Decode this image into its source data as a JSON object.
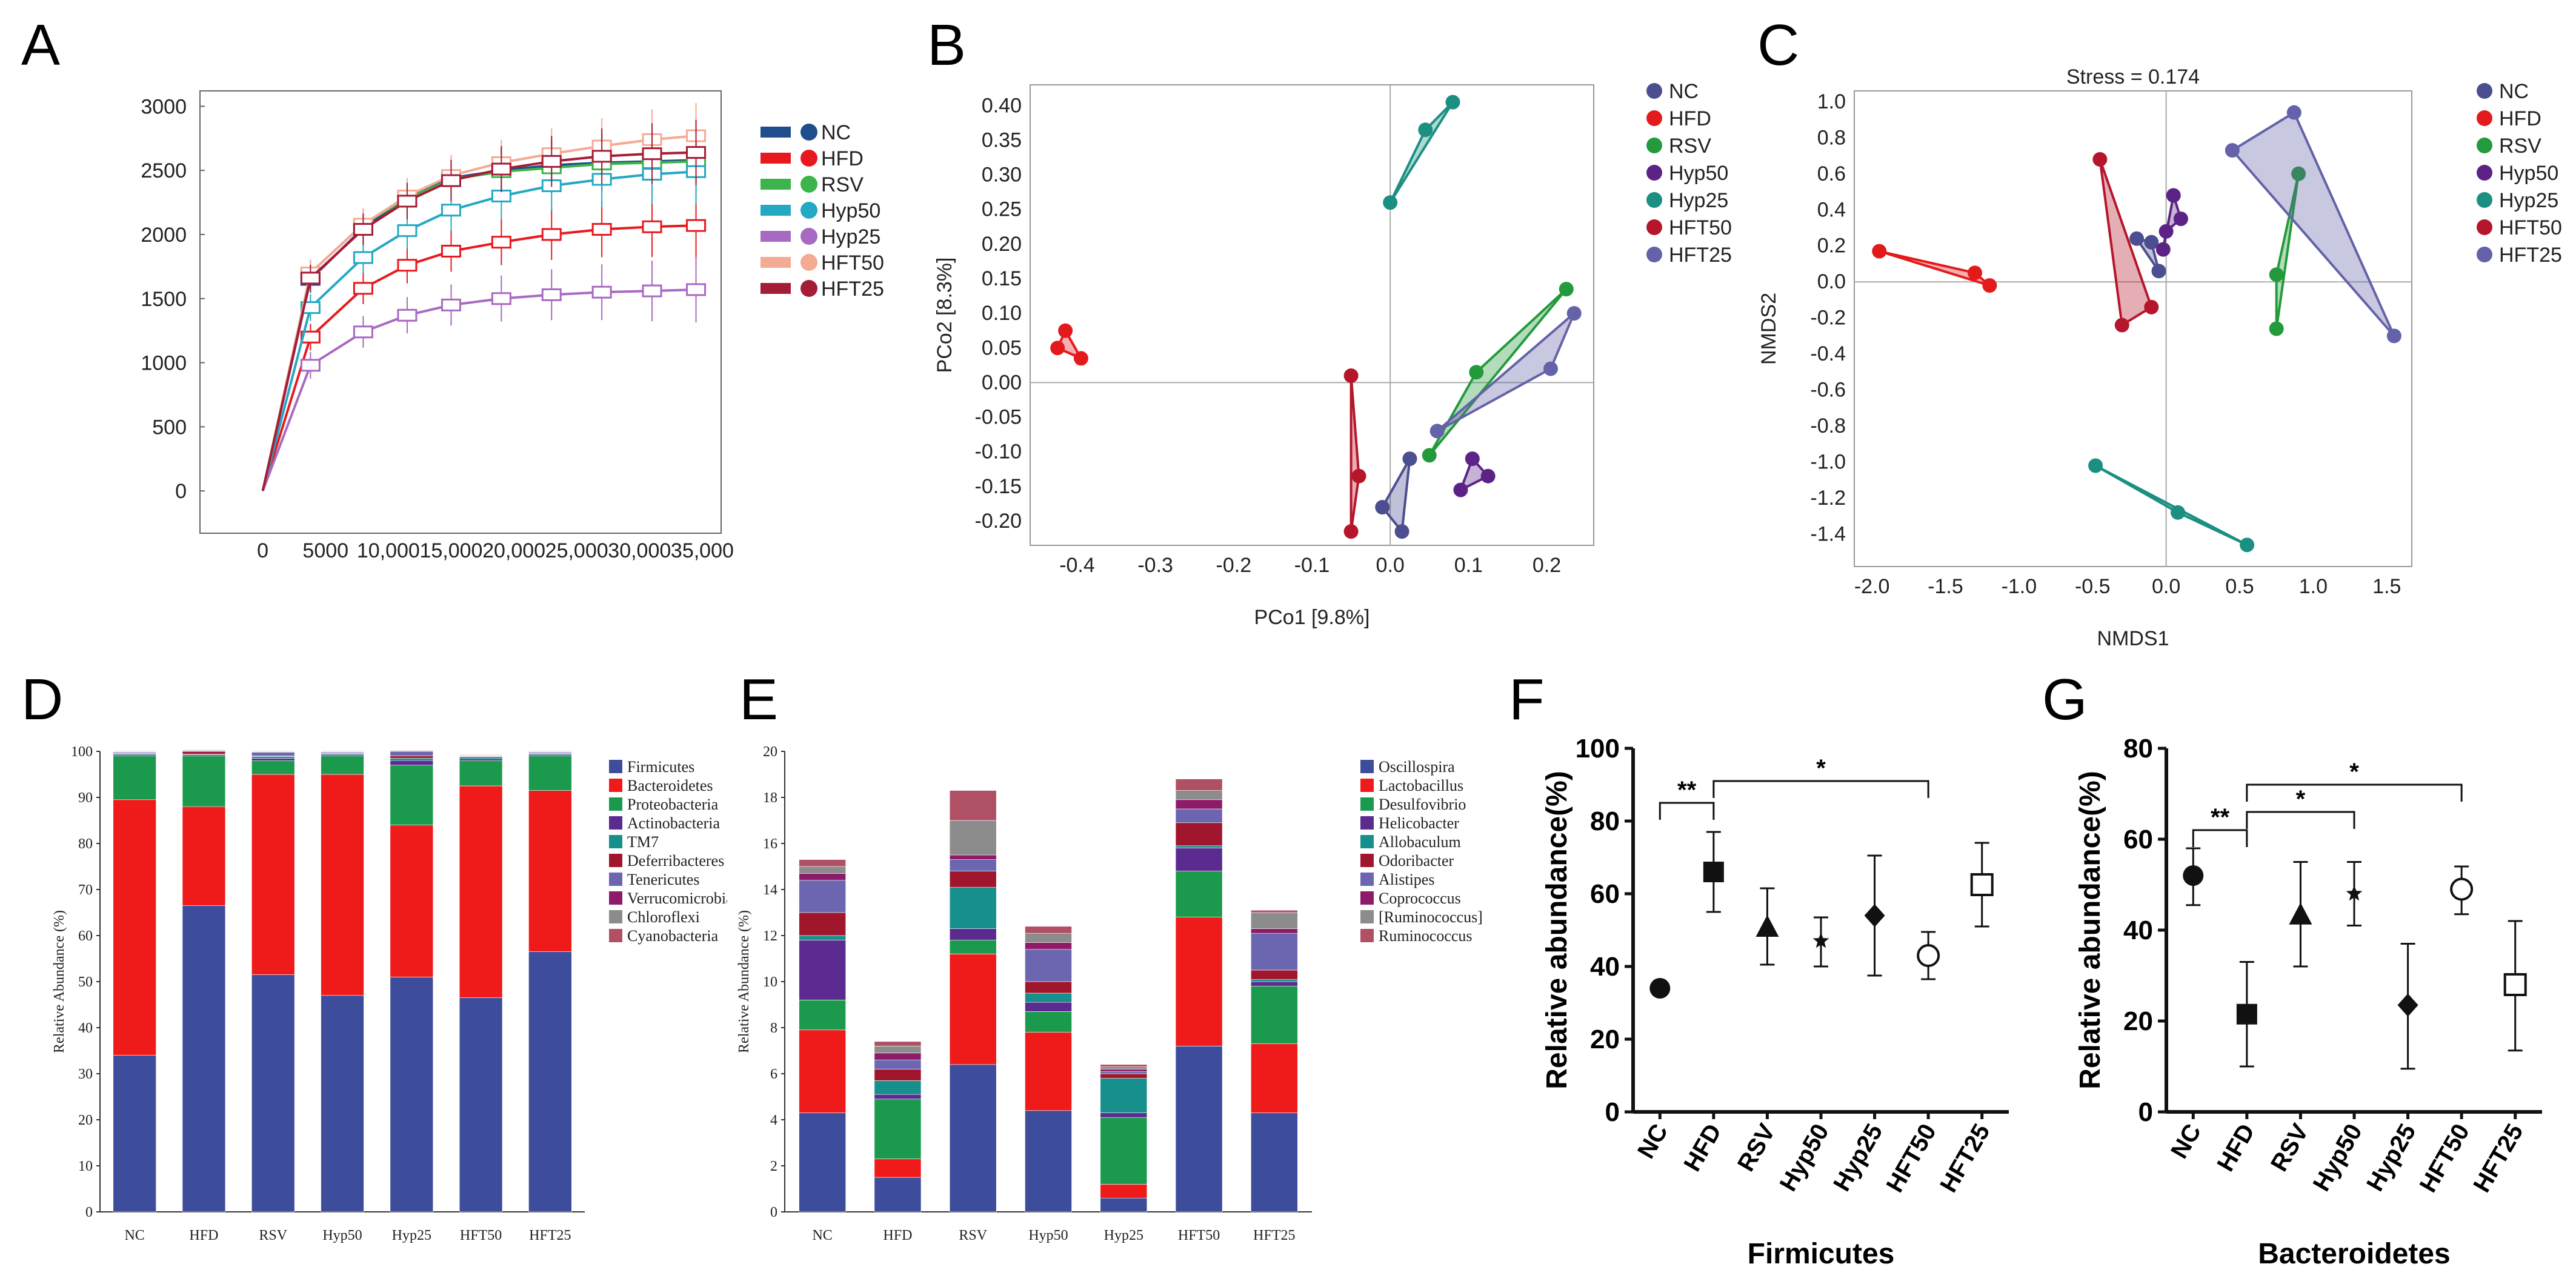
{
  "panels": {
    "A": "A",
    "B": "B",
    "C": "C",
    "D": "D",
    "E": "E",
    "F": "F",
    "G": "G"
  },
  "groups": [
    "NC",
    "HFD",
    "RSV",
    "Hyp50",
    "Hyp25",
    "HFT50",
    "HFT25"
  ],
  "chart_data": [
    {
      "id": "A",
      "type": "line",
      "title": "",
      "x": [
        0,
        3800,
        8000,
        11500,
        15000,
        19000,
        23000,
        27000,
        31000,
        34500
      ],
      "xticks": [
        0,
        5000,
        10000,
        15000,
        20000,
        25000,
        30000,
        35000
      ],
      "xtick_labels": [
        "0",
        "5000",
        "10,000",
        "15,000",
        "20,000",
        "25,000",
        "30,000",
        "35,000"
      ],
      "ylim": [
        0,
        3000
      ],
      "yticks": [
        0,
        500,
        1000,
        1500,
        2000,
        2500,
        3000
      ],
      "series": [
        {
          "name": "NC",
          "color": "#1f4e8c",
          "values": [
            0,
            1650,
            2050,
            2280,
            2440,
            2500,
            2540,
            2560,
            2570,
            2580
          ]
        },
        {
          "name": "HFD",
          "color": "#e8191e",
          "values": [
            0,
            1200,
            1580,
            1760,
            1870,
            1940,
            2000,
            2040,
            2060,
            2070
          ]
        },
        {
          "name": "RSV",
          "color": "#3cb44b",
          "values": [
            0,
            1700,
            2080,
            2280,
            2430,
            2490,
            2520,
            2550,
            2560,
            2570
          ]
        },
        {
          "name": "Hyp50",
          "color": "#24a8c4",
          "values": [
            0,
            1430,
            1820,
            2030,
            2190,
            2300,
            2380,
            2430,
            2470,
            2490
          ]
        },
        {
          "name": "Hyp25",
          "color": "#a869c2",
          "values": [
            0,
            980,
            1240,
            1370,
            1450,
            1500,
            1530,
            1550,
            1560,
            1570
          ]
        },
        {
          "name": "HFT50",
          "color": "#f5aa94",
          "values": [
            0,
            1700,
            2080,
            2300,
            2460,
            2560,
            2630,
            2690,
            2740,
            2770
          ]
        },
        {
          "name": "HFT25",
          "color": "#a51c36",
          "values": [
            0,
            1660,
            2040,
            2260,
            2420,
            2510,
            2570,
            2610,
            2630,
            2640
          ]
        }
      ]
    },
    {
      "id": "B",
      "type": "scatter",
      "xlabel": "PCo1 [9.8%]",
      "ylabel": "PCo2 [8.3%]",
      "xlim": [
        -0.46,
        0.26
      ],
      "ylim": [
        -0.235,
        0.43
      ],
      "xticks": [
        -0.4,
        -0.3,
        -0.2,
        -0.1,
        0.0,
        0.1,
        0.2
      ],
      "xtick_labels": [
        "-0.4",
        "-0.3",
        "-0.2",
        "-0.1",
        "0.0",
        "0.1",
        "0.2"
      ],
      "yticks": [
        -0.2,
        -0.15,
        -0.1,
        -0.05,
        0,
        0.05,
        0.1,
        0.15,
        0.2,
        0.25,
        0.3,
        0.35,
        0.4
      ],
      "ytick_labels": [
        "-0.20",
        "-0.15",
        "-0.10",
        "-0.05",
        "0.00",
        "0.05",
        "0.10",
        "0.15",
        "0.20",
        "0.25",
        "0.30",
        "0.35",
        "0.40"
      ],
      "series": [
        {
          "name": "NC",
          "color": "#4b4e8f",
          "points": [
            [
              -0.01,
              -0.18
            ],
            [
              0.015,
              -0.215
            ],
            [
              0.025,
              -0.11
            ]
          ]
        },
        {
          "name": "HFD",
          "color": "#e31a1c",
          "points": [
            [
              -0.415,
              0.075
            ],
            [
              -0.425,
              0.05
            ],
            [
              -0.395,
              0.035
            ]
          ]
        },
        {
          "name": "RSV",
          "color": "#239a3b",
          "points": [
            [
              0.225,
              0.135
            ],
            [
              0.11,
              0.015
            ],
            [
              0.05,
              -0.105
            ]
          ]
        },
        {
          "name": "Hyp50",
          "color": "#5c2286",
          "points": [
            [
              0.105,
              -0.11
            ],
            [
              0.125,
              -0.135
            ],
            [
              0.09,
              -0.155
            ]
          ]
        },
        {
          "name": "Hyp25",
          "color": "#1a8f82",
          "points": [
            [
              -0.0,
              0.26
            ],
            [
              0.045,
              0.365
            ],
            [
              0.08,
              0.405
            ]
          ]
        },
        {
          "name": "HFT50",
          "color": "#b5162b",
          "points": [
            [
              -0.05,
              0.01
            ],
            [
              -0.04,
              -0.135
            ],
            [
              -0.05,
              -0.215
            ]
          ]
        },
        {
          "name": "HFT25",
          "color": "#6462a8",
          "points": [
            [
              0.235,
              0.1
            ],
            [
              0.205,
              0.02
            ],
            [
              0.06,
              -0.07
            ]
          ]
        }
      ]
    },
    {
      "id": "C",
      "type": "scatter",
      "title": "Stress = 0.174",
      "xlabel": "NMDS1",
      "ylabel": "NMDS2",
      "xlim": [
        -2.12,
        1.67
      ],
      "ylim": [
        -1.58,
        1.06
      ],
      "xticks": [
        -2.0,
        -1.5,
        -1.0,
        -0.5,
        0.0,
        0.5,
        1.0,
        1.5
      ],
      "xtick_labels": [
        "-2.0",
        "-1.5",
        "-1.0",
        "-0.5",
        "0.0",
        "0.5",
        "1.0",
        "1.5"
      ],
      "yticks": [
        -1.4,
        -1.2,
        -1.0,
        -0.8,
        -0.6,
        -0.4,
        -0.2,
        0.0,
        0.2,
        0.4,
        0.6,
        0.8,
        1.0
      ],
      "ytick_labels": [
        "-1.4",
        "-1.2",
        "-1.0",
        "-0.8",
        "-0.6",
        "-0.4",
        "-0.2",
        "0.0",
        "0.2",
        "0.4",
        "0.6",
        "0.8",
        "1.0"
      ],
      "series": [
        {
          "name": "NC",
          "color": "#4b4e8f",
          "points": [
            [
              -0.2,
              0.24
            ],
            [
              -0.05,
              0.06
            ],
            [
              -0.1,
              0.22
            ]
          ]
        },
        {
          "name": "HFD",
          "color": "#e31a1c",
          "points": [
            [
              -1.95,
              0.17
            ],
            [
              -1.3,
              0.05
            ],
            [
              -1.2,
              -0.02
            ]
          ]
        },
        {
          "name": "RSV",
          "color": "#239a3b",
          "points": [
            [
              0.9,
              0.6
            ],
            [
              0.75,
              0.04
            ],
            [
              0.75,
              -0.26
            ]
          ]
        },
        {
          "name": "Hyp50",
          "color": "#5c2286",
          "points": [
            [
              0.05,
              0.48
            ],
            [
              0.1,
              0.35
            ],
            [
              0.0,
              0.28
            ],
            [
              -0.02,
              0.18
            ]
          ]
        },
        {
          "name": "Hyp25",
          "color": "#1a8f82",
          "points": [
            [
              -0.48,
              -1.02
            ],
            [
              0.08,
              -1.28
            ],
            [
              0.55,
              -1.46
            ]
          ]
        },
        {
          "name": "HFT50",
          "color": "#b5162b",
          "points": [
            [
              -0.45,
              0.68
            ],
            [
              -0.1,
              -0.14
            ],
            [
              -0.3,
              -0.24
            ]
          ]
        },
        {
          "name": "HFT25",
          "color": "#6462a8",
          "points": [
            [
              0.45,
              0.73
            ],
            [
              0.87,
              0.94
            ],
            [
              1.55,
              -0.3
            ]
          ]
        }
      ]
    },
    {
      "id": "D",
      "type": "bar",
      "stacked": true,
      "ylabel": "Relative Abundance (%)",
      "categories": [
        "NC",
        "HFD",
        "RSV",
        "Hyp50",
        "Hyp25",
        "HFT50",
        "HFT25"
      ],
      "ylim": [
        0,
        100
      ],
      "yticks": [
        0,
        10,
        20,
        30,
        40,
        50,
        60,
        70,
        80,
        90,
        100
      ],
      "series": [
        {
          "name": "Firmicutes",
          "color": "#3e4d9b",
          "values": [
            34,
            66.5,
            51.5,
            47,
            51,
            46.5,
            56.5
          ]
        },
        {
          "name": "Bacteroidetes",
          "color": "#ef1a1a",
          "values": [
            55.5,
            21.5,
            43.5,
            48,
            33,
            46,
            35
          ]
        },
        {
          "name": "Proteobacteria",
          "color": "#1b9a4d",
          "values": [
            9.5,
            11,
            3,
            4,
            13,
            5.5,
            7.5
          ]
        },
        {
          "name": "Actinobacteria",
          "color": "#5b2b8f",
          "values": [
            0.3,
            0.3,
            0.5,
            0.3,
            1,
            0.4,
            0.3
          ]
        },
        {
          "name": "TM7",
          "color": "#178f8d",
          "values": [
            0.2,
            0.1,
            0.4,
            0.2,
            0.5,
            0.4,
            0.2
          ]
        },
        {
          "name": "Deferribacteres",
          "color": "#a0162c",
          "values": [
            0.1,
            0.6,
            0.1,
            0.1,
            0.5,
            0.1,
            0.1
          ]
        },
        {
          "name": "Tenericutes",
          "color": "#6c66b0",
          "values": [
            0.2,
            0.1,
            0.8,
            0.2,
            1,
            0.1,
            0.2
          ]
        },
        {
          "name": "Verrucomicrobia",
          "color": "#8e1b6a",
          "values": [
            0.1,
            0.1,
            0.1,
            0.1,
            0.1,
            0.1,
            0.1
          ]
        },
        {
          "name": "Chloroflexi",
          "color": "#8c8c8c",
          "values": [
            0.1,
            0.1,
            0.1,
            0.1,
            0.1,
            0.1,
            0.1
          ]
        },
        {
          "name": "Cyanobacteria",
          "color": "#b05064",
          "values": [
            0.1,
            0.1,
            0.1,
            0.1,
            0.1,
            0.1,
            0.1
          ]
        }
      ]
    },
    {
      "id": "E",
      "type": "bar",
      "stacked": true,
      "ylabel": "Relative Abundance (%)",
      "categories": [
        "NC",
        "HFD",
        "RSV",
        "Hyp50",
        "Hyp25",
        "HFT50",
        "HFT25"
      ],
      "ylim": [
        0,
        20
      ],
      "yticks": [
        0,
        2,
        4,
        6,
        8,
        10,
        12,
        14,
        16,
        18,
        20
      ],
      "series": [
        {
          "name": "Oscillospira",
          "color": "#3e4d9b",
          "values": [
            4.3,
            1.5,
            6.4,
            4.4,
            0.6,
            7.2,
            4.3
          ]
        },
        {
          "name": "Lactobacillus",
          "color": "#ef1a1a",
          "values": [
            3.6,
            0.8,
            4.8,
            3.4,
            0.6,
            5.6,
            3.0
          ]
        },
        {
          "name": "Desulfovibrio",
          "color": "#1b9a4d",
          "values": [
            1.3,
            2.6,
            0.6,
            0.9,
            2.9,
            2.0,
            2.5
          ]
        },
        {
          "name": "Helicobacter",
          "color": "#5b2b8f",
          "values": [
            2.6,
            0.2,
            0.5,
            0.4,
            0.2,
            1.0,
            0.2
          ]
        },
        {
          "name": "Allobaculum",
          "color": "#178f8d",
          "values": [
            0.2,
            0.6,
            1.8,
            0.4,
            1.5,
            0.1,
            0.1
          ]
        },
        {
          "name": "Odoribacter",
          "color": "#a0162c",
          "values": [
            1.0,
            0.5,
            0.7,
            0.5,
            0.2,
            1.0,
            0.4
          ]
        },
        {
          "name": "Alistipes",
          "color": "#6c66b0",
          "values": [
            1.4,
            0.4,
            0.5,
            1.4,
            0.1,
            0.6,
            1.6
          ]
        },
        {
          "name": "Coprococcus",
          "color": "#8e1b6a",
          "values": [
            0.3,
            0.3,
            0.2,
            0.3,
            0.1,
            0.4,
            0.2
          ]
        },
        {
          "name": "[Ruminococcus]",
          "color": "#8c8c8c",
          "values": [
            0.3,
            0.3,
            1.5,
            0.4,
            0.1,
            0.4,
            0.7
          ]
        },
        {
          "name": "Ruminococcus",
          "color": "#b05064",
          "values": [
            0.3,
            0.2,
            1.3,
            0.3,
            0.1,
            0.5,
            0.1
          ]
        }
      ]
    },
    {
      "id": "F",
      "type": "scatter",
      "subtype": "mean-errorbar",
      "xlabel": "Firmicutes",
      "ylabel": "Relative abundance(%)",
      "categories": [
        "NC",
        "HFD",
        "RSV",
        "Hyp50",
        "Hyp25",
        "HFT50",
        "HFT25"
      ],
      "ylim": [
        0,
        100
      ],
      "yticks": [
        0,
        20,
        40,
        60,
        80,
        100
      ],
      "means": [
        34,
        66,
        51,
        47,
        54,
        43,
        62.5
      ],
      "lower": [
        33,
        55,
        40.5,
        40,
        37.5,
        36.5,
        51
      ],
      "upper": [
        35,
        77,
        61.5,
        53.5,
        70.5,
        49.5,
        74
      ],
      "markers": [
        "circle",
        "square",
        "triangle",
        "star",
        "diamond",
        "open-circle",
        "open-square"
      ],
      "significance": [
        {
          "from": "NC",
          "to": "HFD",
          "label": "**",
          "y": 85
        },
        {
          "from": "HFD",
          "to": "HFT50",
          "label": "*",
          "y": 91
        }
      ]
    },
    {
      "id": "G",
      "type": "scatter",
      "subtype": "mean-errorbar",
      "xlabel": "Bacteroidetes",
      "ylabel": "Relative abundance(%)",
      "categories": [
        "NC",
        "HFD",
        "RSV",
        "Hyp50",
        "Hyp25",
        "HFT50",
        "HFT25"
      ],
      "ylim": [
        0,
        80
      ],
      "yticks": [
        0,
        20,
        40,
        60,
        80
      ],
      "means": [
        52,
        21.5,
        43.5,
        48,
        23.5,
        49,
        28
      ],
      "lower": [
        45.5,
        10,
        32,
        41,
        9.5,
        43.5,
        13.5
      ],
      "upper": [
        58,
        33,
        55,
        55,
        37,
        54,
        42
      ],
      "markers": [
        "circle",
        "square",
        "triangle",
        "star",
        "diamond",
        "open-circle",
        "open-square"
      ],
      "significance": [
        {
          "from": "NC",
          "to": "HFD",
          "label": "**",
          "y": 62
        },
        {
          "from": "HFD",
          "to": "Hyp50",
          "label": "*",
          "y": 66
        },
        {
          "from": "HFD",
          "to": "HFT50",
          "label": "*",
          "y": 72
        }
      ]
    }
  ]
}
